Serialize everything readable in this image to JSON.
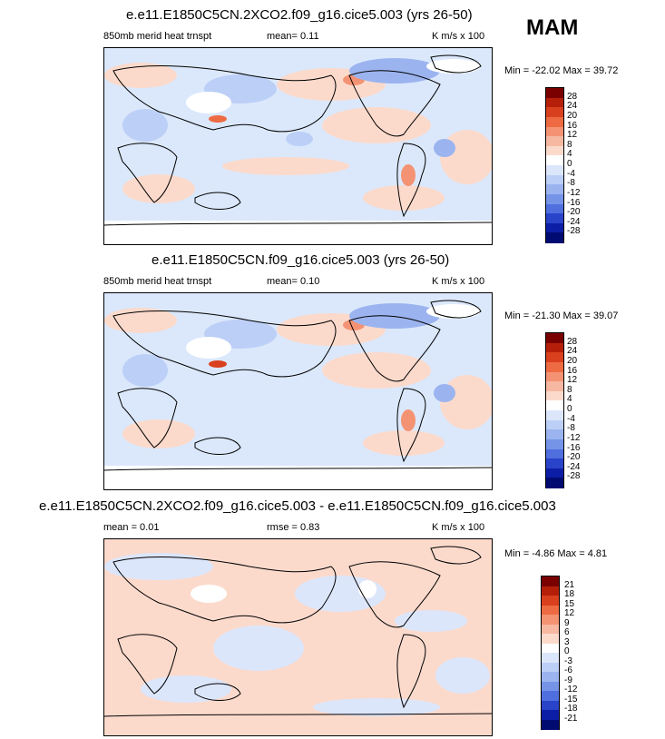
{
  "season": "MAM",
  "units": "K m/s x 100",
  "panels": [
    {
      "title": "e.e11.E1850C5CN.2XCO2.f09_g16.cice5.003 (yrs 26-50)",
      "left_label": "850mb merid heat trnspt",
      "mid_label": "mean=  0.11",
      "right_label": "K m/s x 100",
      "minmax": "Min = -22.02 Max =  39.72",
      "colorbar_labels": [
        "28",
        "24",
        "20",
        "16",
        "12",
        "8",
        "4",
        "0",
        "-4",
        "-8",
        "-12",
        "-16",
        "-20",
        "-24",
        "-28"
      ]
    },
    {
      "title": "e.e11.E1850C5CN.f09_g16.cice5.003 (yrs 26-50)",
      "left_label": "850mb merid heat trnspt",
      "mid_label": "mean=  0.10",
      "right_label": "K m/s x 100",
      "minmax": "Min = -21.30 Max =  39.07",
      "colorbar_labels": [
        "28",
        "24",
        "20",
        "16",
        "12",
        "8",
        "4",
        "0",
        "-4",
        "-8",
        "-12",
        "-16",
        "-20",
        "-24",
        "-28"
      ]
    },
    {
      "title": "e.e11.E1850C5CN.2XCO2.f09_g16.cice5.003 - e.e11.E1850C5CN.f09_g16.cice5.003",
      "left_label": "mean =  0.01",
      "mid_label": "rmse =  0.83",
      "right_label": "K m/s x 100",
      "minmax": "Min = -4.86 Max =  4.81",
      "colorbar_labels": [
        "21",
        "18",
        "15",
        "12",
        "9",
        "6",
        "3",
        "0",
        "-3",
        "-6",
        "-9",
        "-12",
        "-15",
        "-18",
        "-21"
      ]
    }
  ],
  "colorbar_colors": [
    "#7a0000",
    "#b51f0a",
    "#d9401e",
    "#ee6a43",
    "#f49373",
    "#f7b8a1",
    "#fbdacc",
    "#ffffff",
    "#dce6fb",
    "#bccff7",
    "#9bb4f0",
    "#7594e8",
    "#4f6fdf",
    "#2943c9",
    "#0c1ea6",
    "#000b72"
  ]
}
